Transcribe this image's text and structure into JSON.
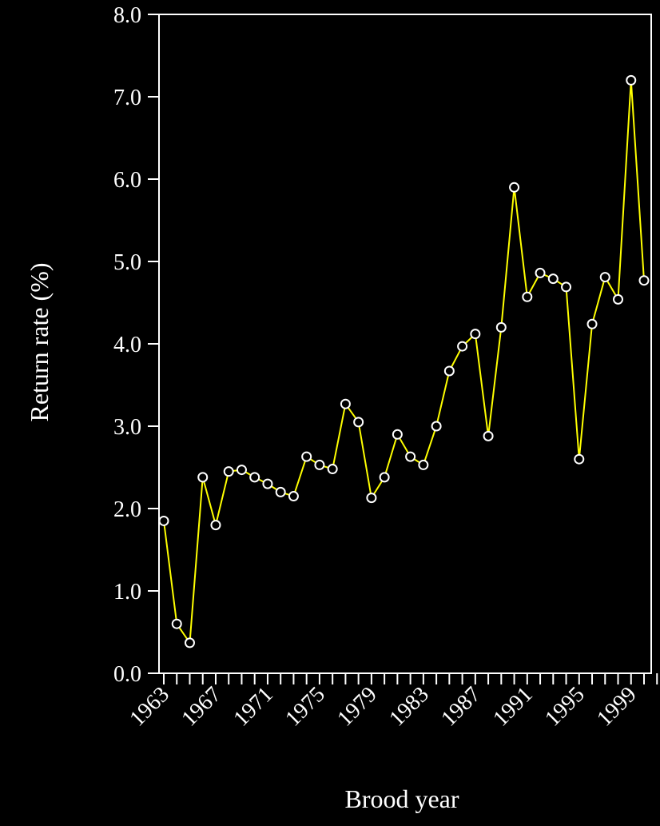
{
  "chart_data": {
    "type": "line",
    "title": "",
    "xlabel": "Brood year",
    "ylabel": "Return rate (%)",
    "ylim": [
      0,
      8
    ],
    "xlim": [
      1963,
      2001
    ],
    "y_ticks": [
      "0.0",
      "1.0",
      "2.0",
      "3.0",
      "4.0",
      "5.0",
      "6.0",
      "7.0",
      "8.0"
    ],
    "x_tick_labels": [
      "1963",
      "1967",
      "1971",
      "1975",
      "1979",
      "1983",
      "1987",
      "1991",
      "1995",
      "1999"
    ],
    "grid": false,
    "legend": "none",
    "series": [
      {
        "color": "#ffff00",
        "marker": "open-circle",
        "x": [
          1963,
          1964,
          1965,
          1966,
          1967,
          1968,
          1969,
          1970,
          1971,
          1972,
          1973,
          1974,
          1975,
          1976,
          1977,
          1978,
          1979,
          1980,
          1981,
          1982,
          1983,
          1984,
          1985,
          1986,
          1987,
          1988,
          1989,
          1990,
          1991,
          1992,
          1993,
          1994,
          1995,
          1996,
          1997,
          1998,
          1999,
          2000,
          2001
        ],
        "y": [
          1.85,
          0.6,
          0.37,
          2.38,
          1.8,
          2.45,
          2.47,
          2.38,
          2.3,
          2.2,
          2.15,
          2.63,
          2.53,
          2.48,
          3.27,
          3.05,
          2.13,
          2.38,
          2.9,
          2.63,
          2.53,
          3.0,
          3.67,
          3.97,
          4.12,
          2.88,
          4.2,
          5.9,
          4.57,
          4.86,
          4.79,
          4.69,
          2.6,
          4.24,
          4.81,
          4.54,
          7.2,
          4.77,
          null
        ]
      }
    ]
  }
}
